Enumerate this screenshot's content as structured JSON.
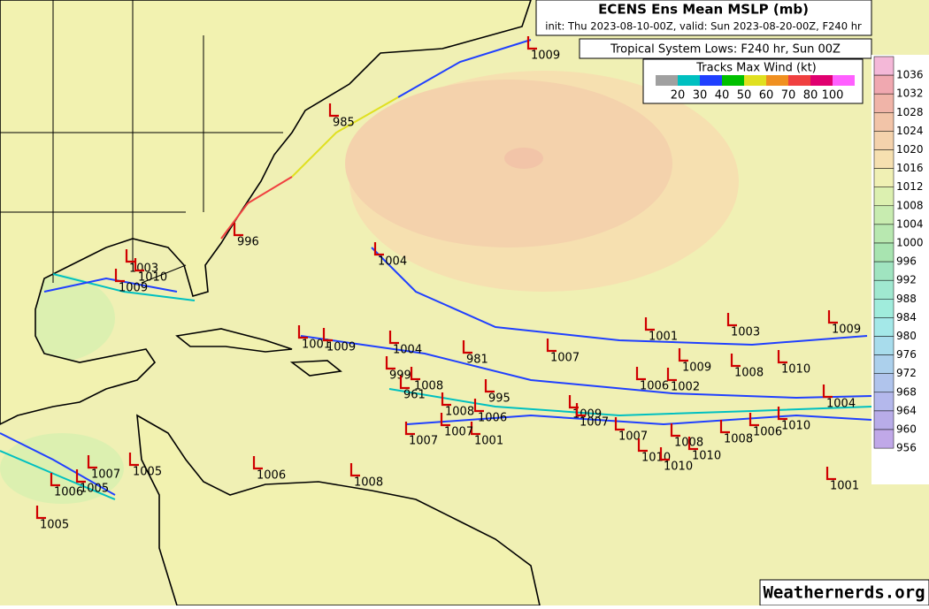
{
  "header": {
    "title": "ECENS Ens Mean MSLP (mb)",
    "subtitle": "init: Thu 2023-08-10-00Z, valid: Sun 2023-08-20-00Z, F240 hr"
  },
  "lows_box": {
    "label": "Tropical System Lows: F240 hr, Sun 00Z"
  },
  "wind_legend": {
    "title": "Tracks Max Wind (kt)",
    "items": [
      {
        "label": "",
        "color": "#a0a0a0"
      },
      {
        "label": 20,
        "color": "#00c0c0"
      },
      {
        "label": 30,
        "color": "#2040ff"
      },
      {
        "label": 40,
        "color": "#00c000"
      },
      {
        "label": 50,
        "color": "#e0e020"
      },
      {
        "label": 60,
        "color": "#f09020"
      },
      {
        "label": 70,
        "color": "#f04040"
      },
      {
        "label": 80,
        "color": "#e00070"
      },
      {
        "label": 100,
        "color": "#ff60ff"
      }
    ]
  },
  "colorbar": {
    "levels": [
      {
        "label": 1036,
        "color": "#f4b8d8"
      },
      {
        "label": 1032,
        "color": "#f0a8b0"
      },
      {
        "label": 1028,
        "color": "#f0b4a8"
      },
      {
        "label": 1024,
        "color": "#f2c4a8"
      },
      {
        "label": 1020,
        "color": "#f4d2ac"
      },
      {
        "label": 1016,
        "color": "#f6e0b0"
      },
      {
        "label": 1012,
        "color": "#f0f0b4"
      },
      {
        "label": 1008,
        "color": "#dcf0b0"
      },
      {
        "label": 1004,
        "color": "#c8ecb0"
      },
      {
        "label": 1000,
        "color": "#b8e8b0"
      },
      {
        "label": 996,
        "color": "#a8e4b0"
      },
      {
        "label": 992,
        "color": "#a0e4c0"
      },
      {
        "label": 988,
        "color": "#a0e8d0"
      },
      {
        "label": 984,
        "color": "#a0ecdc"
      },
      {
        "label": 980,
        "color": "#a4e8e8"
      },
      {
        "label": 976,
        "color": "#a8dcec"
      },
      {
        "label": 972,
        "color": "#acd0ec"
      },
      {
        "label": 968,
        "color": "#b0c4ec"
      },
      {
        "label": 964,
        "color": "#b4b8ec"
      },
      {
        "label": 960,
        "color": "#b8ace8"
      },
      {
        "label": 956,
        "color": "#c0a8e8"
      }
    ]
  },
  "lows": [
    1009,
    985,
    996,
    1004,
    1003,
    1009,
    1010,
    1001,
    1009,
    1004,
    981,
    1007,
    1001,
    1003,
    1009,
    1009,
    1008,
    1010,
    999,
    1008,
    961,
    1006,
    1002,
    995,
    1008,
    1006,
    1009,
    1007,
    1007,
    1001,
    1007,
    1007,
    1008,
    1006,
    1010,
    1010,
    1010,
    1001,
    1005,
    1006,
    1008,
    1007,
    1006,
    1005,
    1005,
    1004,
    1010,
    1008
  ],
  "watermark": "Weathernerds.org"
}
